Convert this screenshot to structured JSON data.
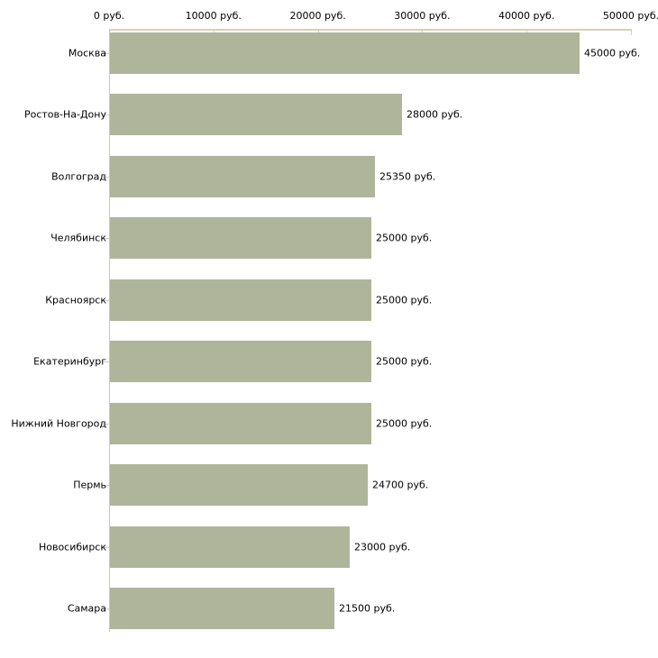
{
  "chart_data": {
    "type": "bar",
    "orientation": "horizontal",
    "title": "",
    "xlabel": "",
    "ylabel": "",
    "xlim": [
      0,
      50000
    ],
    "grid": false,
    "legend": "none",
    "categories": [
      "Москва",
      "Ростов-На-Дону",
      "Волгоград",
      "Челябинск",
      "Красноярск",
      "Екатеринбург",
      "Нижний Новгород",
      "Пермь",
      "Новосибирск",
      "Самара"
    ],
    "values": [
      45000,
      28000,
      25350,
      25000,
      25000,
      25000,
      25000,
      24700,
      23000,
      21500
    ],
    "value_labels": [
      "45000 руб.",
      "28000 руб.",
      "25350 руб.",
      "25000 руб.",
      "25000 руб.",
      "25000 руб.",
      "25000 руб.",
      "24700 руб.",
      "23000 руб.",
      "21500 руб."
    ],
    "x_ticks": [
      0,
      10000,
      20000,
      30000,
      40000,
      50000
    ],
    "x_tick_labels": [
      "0 руб.",
      "10000 руб.",
      "20000 руб.",
      "30000 руб.",
      "40000 руб.",
      "50000 руб."
    ],
    "colors": {
      "bar_fill": "#afb59b",
      "x_axis": "#d6d2b4",
      "y_axis": "#c8c8c8",
      "text": "#000000",
      "background": "#ffffff"
    }
  }
}
